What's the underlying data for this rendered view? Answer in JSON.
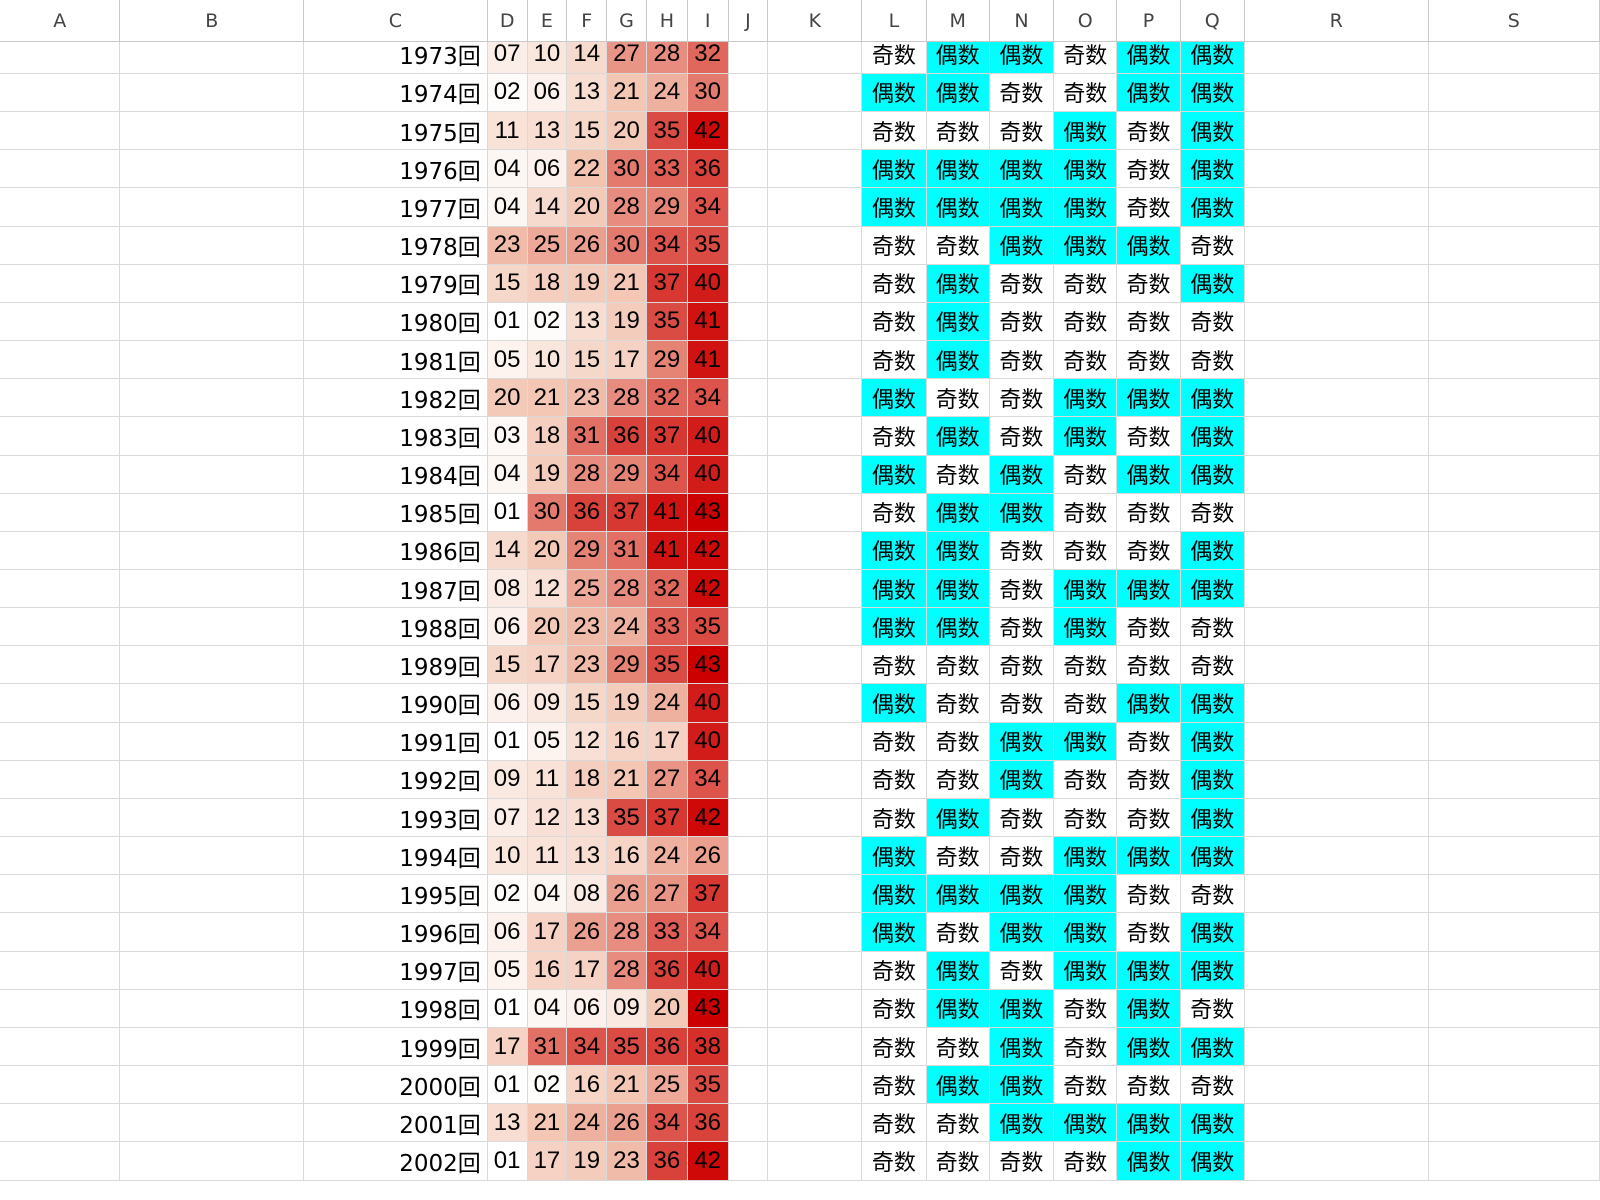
{
  "columns": [
    "A",
    "B",
    "C",
    "D",
    "E",
    "F",
    "G",
    "H",
    "I",
    "J",
    "K",
    "L",
    "M",
    "N",
    "O",
    "P",
    "Q",
    "R",
    "S"
  ],
  "labels": {
    "odd": "奇数",
    "even": "偶数"
  },
  "colors": {
    "even_fill": "#00ffff",
    "odd_fill": "#ffffff",
    "heat_low": "#ffffff",
    "heat_mid": "#f2c4b0",
    "heat_high": "#cc0000",
    "heat_min_value": 1,
    "heat_max_value": 43
  },
  "rows": [
    {
      "draw": "1973回",
      "numbers": [
        "07",
        "10",
        "14",
        "27",
        "28",
        "32"
      ],
      "parity": [
        "奇数",
        "偶数",
        "偶数",
        "奇数",
        "偶数",
        "偶数"
      ]
    },
    {
      "draw": "1974回",
      "numbers": [
        "02",
        "06",
        "13",
        "21",
        "24",
        "30"
      ],
      "parity": [
        "偶数",
        "偶数",
        "奇数",
        "奇数",
        "偶数",
        "偶数"
      ]
    },
    {
      "draw": "1975回",
      "numbers": [
        "11",
        "13",
        "15",
        "20",
        "35",
        "42"
      ],
      "parity": [
        "奇数",
        "奇数",
        "奇数",
        "偶数",
        "奇数",
        "偶数"
      ]
    },
    {
      "draw": "1976回",
      "numbers": [
        "04",
        "06",
        "22",
        "30",
        "33",
        "36"
      ],
      "parity": [
        "偶数",
        "偶数",
        "偶数",
        "偶数",
        "奇数",
        "偶数"
      ]
    },
    {
      "draw": "1977回",
      "numbers": [
        "04",
        "14",
        "20",
        "28",
        "29",
        "34"
      ],
      "parity": [
        "偶数",
        "偶数",
        "偶数",
        "偶数",
        "奇数",
        "偶数"
      ]
    },
    {
      "draw": "1978回",
      "numbers": [
        "23",
        "25",
        "26",
        "30",
        "34",
        "35"
      ],
      "parity": [
        "奇数",
        "奇数",
        "偶数",
        "偶数",
        "偶数",
        "奇数"
      ]
    },
    {
      "draw": "1979回",
      "numbers": [
        "15",
        "18",
        "19",
        "21",
        "37",
        "40"
      ],
      "parity": [
        "奇数",
        "偶数",
        "奇数",
        "奇数",
        "奇数",
        "偶数"
      ]
    },
    {
      "draw": "1980回",
      "numbers": [
        "01",
        "02",
        "13",
        "19",
        "35",
        "41"
      ],
      "parity": [
        "奇数",
        "偶数",
        "奇数",
        "奇数",
        "奇数",
        "奇数"
      ]
    },
    {
      "draw": "1981回",
      "numbers": [
        "05",
        "10",
        "15",
        "17",
        "29",
        "41"
      ],
      "parity": [
        "奇数",
        "偶数",
        "奇数",
        "奇数",
        "奇数",
        "奇数"
      ]
    },
    {
      "draw": "1982回",
      "numbers": [
        "20",
        "21",
        "23",
        "28",
        "32",
        "34"
      ],
      "parity": [
        "偶数",
        "奇数",
        "奇数",
        "偶数",
        "偶数",
        "偶数"
      ]
    },
    {
      "draw": "1983回",
      "numbers": [
        "03",
        "18",
        "31",
        "36",
        "37",
        "40"
      ],
      "parity": [
        "奇数",
        "偶数",
        "奇数",
        "偶数",
        "奇数",
        "偶数"
      ]
    },
    {
      "draw": "1984回",
      "numbers": [
        "04",
        "19",
        "28",
        "29",
        "34",
        "40"
      ],
      "parity": [
        "偶数",
        "奇数",
        "偶数",
        "奇数",
        "偶数",
        "偶数"
      ]
    },
    {
      "draw": "1985回",
      "numbers": [
        "01",
        "30",
        "36",
        "37",
        "41",
        "43"
      ],
      "parity": [
        "奇数",
        "偶数",
        "偶数",
        "奇数",
        "奇数",
        "奇数"
      ]
    },
    {
      "draw": "1986回",
      "numbers": [
        "14",
        "20",
        "29",
        "31",
        "41",
        "42"
      ],
      "parity": [
        "偶数",
        "偶数",
        "奇数",
        "奇数",
        "奇数",
        "偶数"
      ]
    },
    {
      "draw": "1987回",
      "numbers": [
        "08",
        "12",
        "25",
        "28",
        "32",
        "42"
      ],
      "parity": [
        "偶数",
        "偶数",
        "奇数",
        "偶数",
        "偶数",
        "偶数"
      ]
    },
    {
      "draw": "1988回",
      "numbers": [
        "06",
        "20",
        "23",
        "24",
        "33",
        "35"
      ],
      "parity": [
        "偶数",
        "偶数",
        "奇数",
        "偶数",
        "奇数",
        "奇数"
      ]
    },
    {
      "draw": "1989回",
      "numbers": [
        "15",
        "17",
        "23",
        "29",
        "35",
        "43"
      ],
      "parity": [
        "奇数",
        "奇数",
        "奇数",
        "奇数",
        "奇数",
        "奇数"
      ]
    },
    {
      "draw": "1990回",
      "numbers": [
        "06",
        "09",
        "15",
        "19",
        "24",
        "40"
      ],
      "parity": [
        "偶数",
        "奇数",
        "奇数",
        "奇数",
        "偶数",
        "偶数"
      ]
    },
    {
      "draw": "1991回",
      "numbers": [
        "01",
        "05",
        "12",
        "16",
        "17",
        "40"
      ],
      "parity": [
        "奇数",
        "奇数",
        "偶数",
        "偶数",
        "奇数",
        "偶数"
      ]
    },
    {
      "draw": "1992回",
      "numbers": [
        "09",
        "11",
        "18",
        "21",
        "27",
        "34"
      ],
      "parity": [
        "奇数",
        "奇数",
        "偶数",
        "奇数",
        "奇数",
        "偶数"
      ]
    },
    {
      "draw": "1993回",
      "numbers": [
        "07",
        "12",
        "13",
        "35",
        "37",
        "42"
      ],
      "parity": [
        "奇数",
        "偶数",
        "奇数",
        "奇数",
        "奇数",
        "偶数"
      ]
    },
    {
      "draw": "1994回",
      "numbers": [
        "10",
        "11",
        "13",
        "16",
        "24",
        "26"
      ],
      "parity": [
        "偶数",
        "奇数",
        "奇数",
        "偶数",
        "偶数",
        "偶数"
      ]
    },
    {
      "draw": "1995回",
      "numbers": [
        "02",
        "04",
        "08",
        "26",
        "27",
        "37"
      ],
      "parity": [
        "偶数",
        "偶数",
        "偶数",
        "偶数",
        "奇数",
        "奇数"
      ]
    },
    {
      "draw": "1996回",
      "numbers": [
        "06",
        "17",
        "26",
        "28",
        "33",
        "34"
      ],
      "parity": [
        "偶数",
        "奇数",
        "偶数",
        "偶数",
        "奇数",
        "偶数"
      ]
    },
    {
      "draw": "1997回",
      "numbers": [
        "05",
        "16",
        "17",
        "28",
        "36",
        "40"
      ],
      "parity": [
        "奇数",
        "偶数",
        "奇数",
        "偶数",
        "偶数",
        "偶数"
      ]
    },
    {
      "draw": "1998回",
      "numbers": [
        "01",
        "04",
        "06",
        "09",
        "20",
        "43"
      ],
      "parity": [
        "奇数",
        "偶数",
        "偶数",
        "奇数",
        "偶数",
        "奇数"
      ]
    },
    {
      "draw": "1999回",
      "numbers": [
        "17",
        "31",
        "34",
        "35",
        "36",
        "38"
      ],
      "parity": [
        "奇数",
        "奇数",
        "偶数",
        "奇数",
        "偶数",
        "偶数"
      ]
    },
    {
      "draw": "2000回",
      "numbers": [
        "01",
        "02",
        "16",
        "21",
        "25",
        "35"
      ],
      "parity": [
        "奇数",
        "偶数",
        "偶数",
        "奇数",
        "奇数",
        "奇数"
      ]
    },
    {
      "draw": "2001回",
      "numbers": [
        "13",
        "21",
        "24",
        "26",
        "34",
        "36"
      ],
      "parity": [
        "奇数",
        "奇数",
        "偶数",
        "偶数",
        "偶数",
        "偶数"
      ]
    },
    {
      "draw": "2002回",
      "numbers": [
        "01",
        "17",
        "19",
        "23",
        "36",
        "42"
      ],
      "parity": [
        "奇数",
        "奇数",
        "奇数",
        "奇数",
        "偶数",
        "偶数"
      ]
    }
  ]
}
